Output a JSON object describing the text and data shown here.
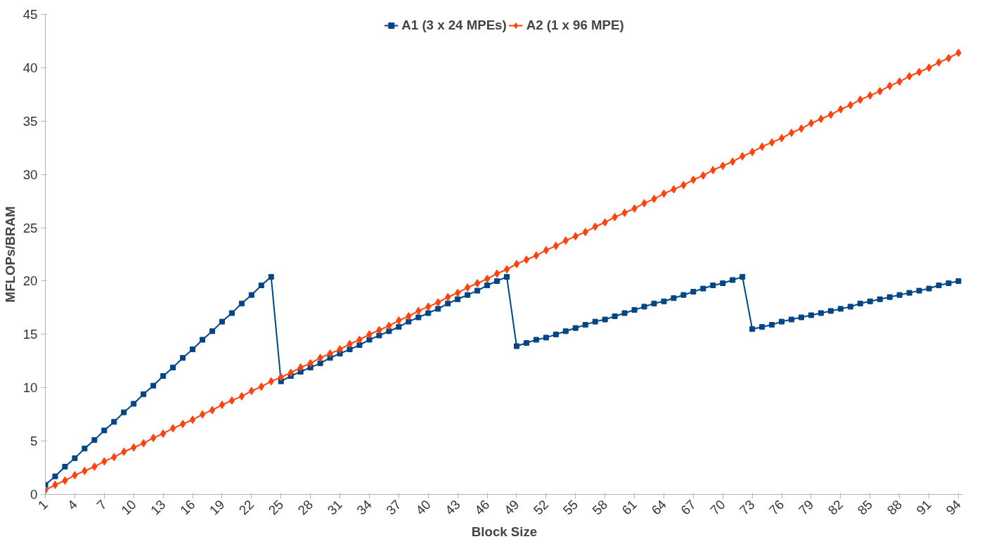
{
  "chart_data": {
    "type": "line",
    "xlabel": "Block Size",
    "ylabel": "MFLOPs/BRAM",
    "x": [
      1,
      2,
      3,
      4,
      5,
      6,
      7,
      8,
      9,
      10,
      11,
      12,
      13,
      14,
      15,
      16,
      17,
      18,
      19,
      20,
      21,
      22,
      23,
      24,
      25,
      26,
      27,
      28,
      29,
      30,
      31,
      32,
      33,
      34,
      35,
      36,
      37,
      38,
      39,
      40,
      41,
      42,
      43,
      44,
      45,
      46,
      47,
      48,
      49,
      50,
      51,
      52,
      53,
      54,
      55,
      56,
      57,
      58,
      59,
      60,
      61,
      62,
      63,
      64,
      65,
      66,
      67,
      68,
      69,
      70,
      71,
      72,
      73,
      74,
      75,
      76,
      77,
      78,
      79,
      80,
      81,
      82,
      83,
      84,
      85,
      86,
      87,
      88,
      89,
      90,
      91,
      92,
      93,
      94
    ],
    "series": [
      {
        "name": "A1 (3 x 24 MPEs)",
        "color": "#004586",
        "marker": "square",
        "values": [
          0.9,
          1.7,
          2.6,
          3.4,
          4.3,
          5.1,
          6.0,
          6.8,
          7.7,
          8.5,
          9.4,
          10.2,
          11.1,
          11.9,
          12.8,
          13.6,
          14.5,
          15.3,
          16.2,
          17.0,
          17.9,
          18.7,
          19.6,
          20.4,
          10.6,
          11.1,
          11.5,
          11.9,
          12.3,
          12.8,
          13.2,
          13.6,
          14.0,
          14.5,
          14.9,
          15.3,
          15.7,
          16.2,
          16.6,
          17.0,
          17.4,
          17.9,
          18.3,
          18.7,
          19.1,
          19.6,
          20.0,
          20.4,
          13.9,
          14.2,
          14.5,
          14.7,
          15.0,
          15.3,
          15.6,
          15.9,
          16.2,
          16.4,
          16.7,
          17.0,
          17.3,
          17.6,
          17.9,
          18.1,
          18.4,
          18.7,
          19.0,
          19.3,
          19.6,
          19.8,
          20.1,
          20.4,
          15.5,
          15.7,
          15.9,
          16.2,
          16.4,
          16.6,
          16.8,
          17.0,
          17.2,
          17.4,
          17.6,
          17.9,
          18.1,
          18.3,
          18.5,
          18.7,
          18.9,
          19.1,
          19.3,
          19.6,
          19.8,
          20.0
        ]
      },
      {
        "name": "A2 (1 x 96 MPE)",
        "color": "#ff420e",
        "marker": "diamond",
        "values": [
          0.4,
          0.9,
          1.3,
          1.8,
          2.2,
          2.6,
          3.1,
          3.5,
          4.0,
          4.4,
          4.8,
          5.3,
          5.7,
          6.2,
          6.6,
          7.0,
          7.5,
          7.9,
          8.4,
          8.8,
          9.2,
          9.7,
          10.1,
          10.6,
          11.0,
          11.4,
          11.9,
          12.3,
          12.8,
          13.2,
          13.6,
          14.1,
          14.5,
          15.0,
          15.4,
          15.8,
          16.3,
          16.7,
          17.2,
          17.6,
          18.0,
          18.5,
          18.9,
          19.4,
          19.8,
          20.2,
          20.7,
          21.1,
          21.6,
          22.0,
          22.4,
          22.9,
          23.3,
          23.8,
          24.2,
          24.6,
          25.1,
          25.5,
          26.0,
          26.4,
          26.8,
          27.3,
          27.7,
          28.2,
          28.6,
          29.0,
          29.5,
          29.9,
          30.4,
          30.8,
          31.2,
          31.7,
          32.1,
          32.6,
          33.0,
          33.4,
          33.9,
          34.3,
          34.8,
          35.2,
          35.6,
          36.1,
          36.5,
          37.0,
          37.4,
          37.8,
          38.3,
          38.7,
          39.2,
          39.6,
          40.0,
          40.5,
          40.9,
          41.4
        ]
      }
    ],
    "xlim": [
      1,
      94.5
    ],
    "xticks": [
      1,
      4,
      7,
      10,
      13,
      16,
      19,
      22,
      25,
      28,
      31,
      34,
      37,
      40,
      43,
      46,
      49,
      52,
      55,
      58,
      61,
      64,
      67,
      70,
      73,
      76,
      79,
      82,
      85,
      88,
      91,
      94
    ],
    "ylim": [
      0,
      45
    ],
    "yticks": [
      0,
      5,
      10,
      15,
      20,
      25,
      30,
      35,
      40,
      45
    ],
    "grid": false,
    "legend": "top",
    "line_style": "solid"
  }
}
